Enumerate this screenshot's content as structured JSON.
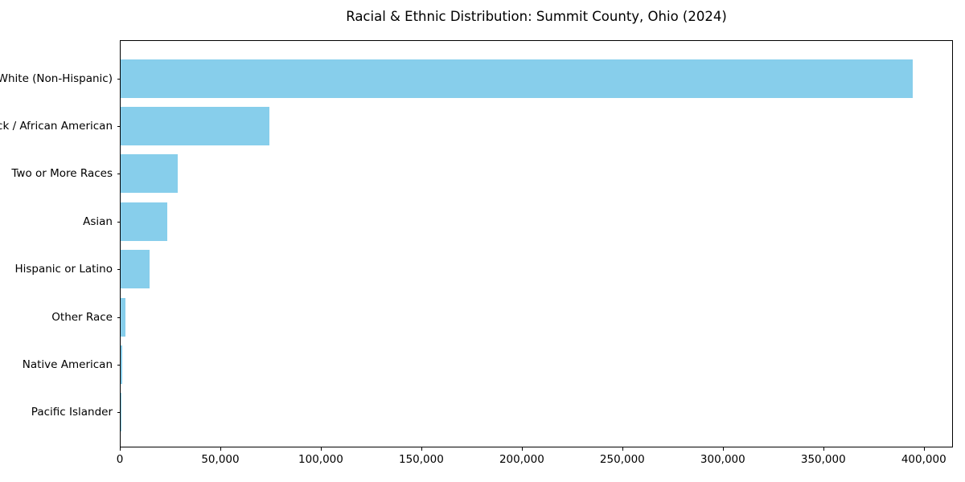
{
  "chart_data": {
    "type": "bar",
    "orientation": "horizontal",
    "title": "Racial & Ethnic Distribution: Summit County, Ohio (2024)",
    "xlabel": "",
    "ylabel": "",
    "categories": [
      "White (Non-Hispanic)",
      "Black / African American",
      "Two or More Races",
      "Asian",
      "Hispanic or Latino",
      "Other Race",
      "Native American",
      "Pacific Islander"
    ],
    "values": [
      394800,
      74000,
      28400,
      23200,
      14400,
      2400,
      1000,
      250
    ],
    "xlim": [
      0,
      414500
    ],
    "x_ticks": [
      0,
      50000,
      100000,
      150000,
      200000,
      250000,
      300000,
      350000,
      400000
    ],
    "x_tick_labels": [
      "0",
      "50,000",
      "100,000",
      "150,000",
      "200,000",
      "250,000",
      "300,000",
      "350,000",
      "400,000"
    ],
    "bar_color": "#87CEEB",
    "axis_color": "#000000",
    "grid": false,
    "legend": null
  }
}
